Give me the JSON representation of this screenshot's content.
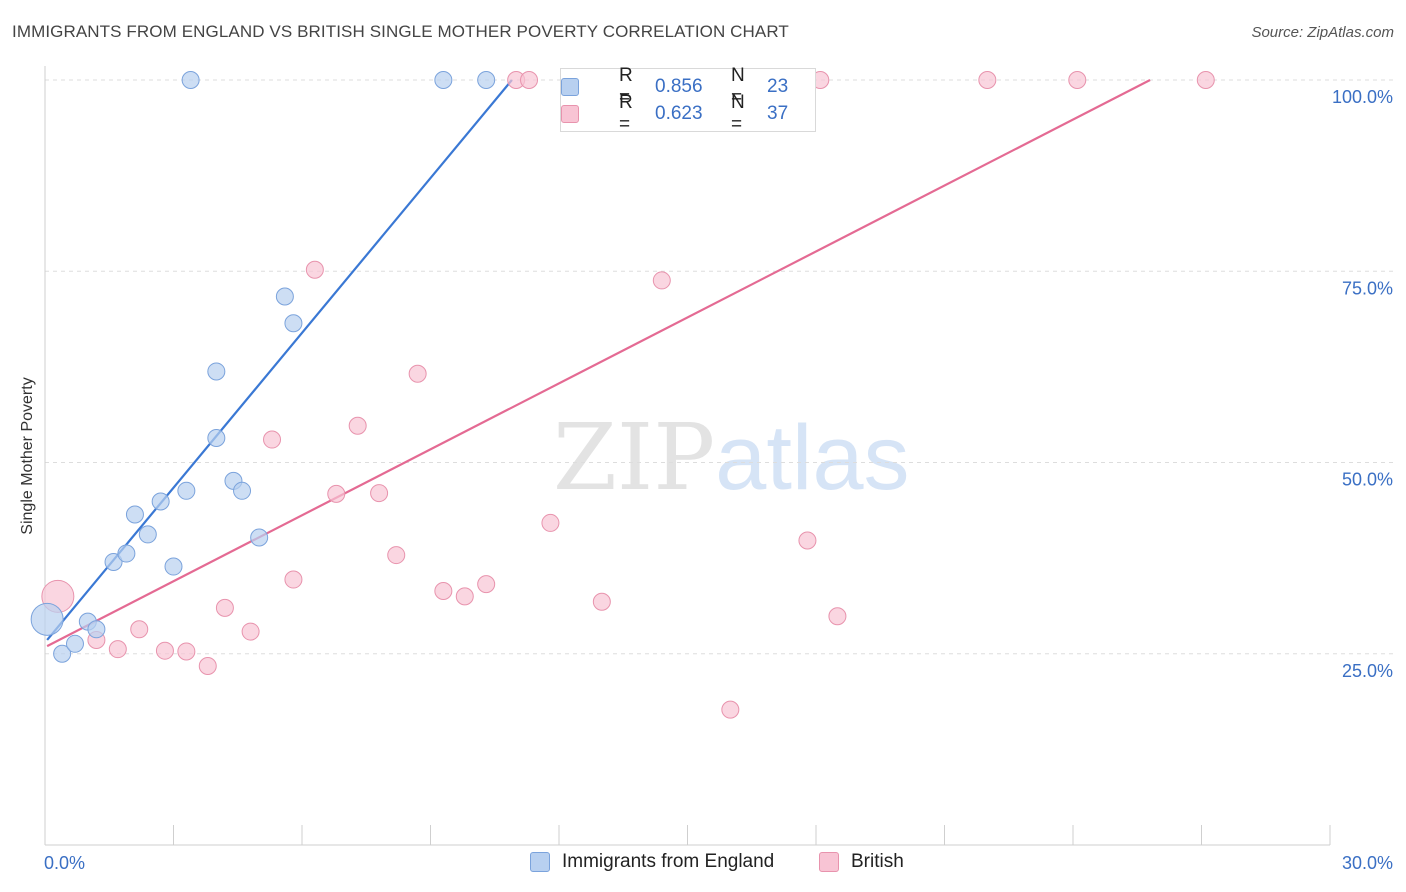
{
  "title": "IMMIGRANTS FROM ENGLAND VS BRITISH SINGLE MOTHER POVERTY CORRELATION CHART",
  "source": "Source: ZipAtlas.com",
  "watermark": {
    "zip": "ZIP",
    "atlas": "atlas"
  },
  "legend": {
    "rows": [
      {
        "r_label": "R =",
        "r_value": "0.856",
        "n_label": "N =",
        "n_value": "23"
      },
      {
        "r_label": "R =",
        "r_value": "0.623",
        "n_label": "N =",
        "n_value": "37"
      }
    ]
  },
  "bottom_legend": {
    "england": "Immigrants from England",
    "british": "British"
  },
  "colors": {
    "england_fill": "#b8d0f0",
    "england_stroke": "#7ba3dc",
    "england_line": "#3a78d4",
    "british_fill": "#f8c4d4",
    "british_stroke": "#e893ad",
    "british_line": "#e46a93",
    "tick_label": "#3a6fc4"
  },
  "chart_data": {
    "type": "scatter",
    "title": "IMMIGRANTS FROM ENGLAND VS BRITISH SINGLE MOTHER POVERTY CORRELATION CHART",
    "xlabel": "",
    "ylabel": "Single Mother Poverty",
    "xlim": [
      0,
      30
    ],
    "ylim": [
      0,
      100
    ],
    "x_tick_labels": [
      "0.0%",
      "30.0%"
    ],
    "y_ticks": [
      25,
      50,
      75,
      100
    ],
    "y_tick_labels": [
      "25.0%",
      "50.0%",
      "75.0%",
      "100.0%"
    ],
    "grid": true,
    "legend_position": "top-center",
    "series": [
      {
        "name": "Immigrants from England",
        "color": "#b8d0f0",
        "points": [
          {
            "x": 0.05,
            "y": 29.5,
            "big": true
          },
          {
            "x": 0.4,
            "y": 25.0
          },
          {
            "x": 0.7,
            "y": 26.3
          },
          {
            "x": 1.0,
            "y": 29.2
          },
          {
            "x": 1.2,
            "y": 28.2
          },
          {
            "x": 1.6,
            "y": 37.0
          },
          {
            "x": 1.9,
            "y": 38.1
          },
          {
            "x": 2.1,
            "y": 43.2
          },
          {
            "x": 2.4,
            "y": 40.6
          },
          {
            "x": 2.7,
            "y": 44.9
          },
          {
            "x": 3.0,
            "y": 36.4
          },
          {
            "x": 3.3,
            "y": 46.3
          },
          {
            "x": 3.4,
            "y": 100.0
          },
          {
            "x": 4.0,
            "y": 61.9
          },
          {
            "x": 4.0,
            "y": 53.2
          },
          {
            "x": 4.4,
            "y": 47.6
          },
          {
            "x": 4.6,
            "y": 46.3
          },
          {
            "x": 5.0,
            "y": 40.2
          },
          {
            "x": 5.6,
            "y": 71.7
          },
          {
            "x": 5.8,
            "y": 68.2
          },
          {
            "x": 9.3,
            "y": 100.0
          },
          {
            "x": 10.3,
            "y": 100.0
          },
          {
            "x": 12.3,
            "y": 100.0
          }
        ],
        "trend": {
          "x": [
            0.05,
            10.9
          ],
          "y": [
            26.8,
            100.0
          ]
        }
      },
      {
        "name": "British",
        "color": "#f8c4d4",
        "points": [
          {
            "x": 0.3,
            "y": 32.5,
            "big": true
          },
          {
            "x": 1.2,
            "y": 26.8
          },
          {
            "x": 1.7,
            "y": 25.6
          },
          {
            "x": 2.2,
            "y": 28.2
          },
          {
            "x": 2.8,
            "y": 25.4
          },
          {
            "x": 3.3,
            "y": 25.3
          },
          {
            "x": 3.8,
            "y": 23.4
          },
          {
            "x": 4.2,
            "y": 31.0
          },
          {
            "x": 4.8,
            "y": 27.9
          },
          {
            "x": 5.3,
            "y": 53.0
          },
          {
            "x": 5.8,
            "y": 34.7
          },
          {
            "x": 6.3,
            "y": 75.2
          },
          {
            "x": 6.8,
            "y": 45.9
          },
          {
            "x": 7.3,
            "y": 54.8
          },
          {
            "x": 7.8,
            "y": 46.0
          },
          {
            "x": 8.2,
            "y": 37.9
          },
          {
            "x": 8.7,
            "y": 61.6
          },
          {
            "x": 9.3,
            "y": 33.2
          },
          {
            "x": 9.8,
            "y": 32.5
          },
          {
            "x": 10.3,
            "y": 34.1
          },
          {
            "x": 11.0,
            "y": 100.0
          },
          {
            "x": 11.3,
            "y": 100.0
          },
          {
            "x": 11.8,
            "y": 42.1
          },
          {
            "x": 12.5,
            "y": 100.0
          },
          {
            "x": 12.7,
            "y": 100.0
          },
          {
            "x": 13.0,
            "y": 31.8
          },
          {
            "x": 14.0,
            "y": 100.0
          },
          {
            "x": 14.4,
            "y": 73.8
          },
          {
            "x": 15.8,
            "y": 100.0
          },
          {
            "x": 16.0,
            "y": 17.7
          },
          {
            "x": 17.2,
            "y": 100.0
          },
          {
            "x": 17.8,
            "y": 39.8
          },
          {
            "x": 18.1,
            "y": 100.0
          },
          {
            "x": 18.5,
            "y": 29.9
          },
          {
            "x": 22.0,
            "y": 100.0
          },
          {
            "x": 24.1,
            "y": 100.0
          },
          {
            "x": 27.1,
            "y": 100.0
          }
        ],
        "trend": {
          "x": [
            0.05,
            25.8
          ],
          "y": [
            26.0,
            100.0
          ]
        }
      }
    ]
  }
}
